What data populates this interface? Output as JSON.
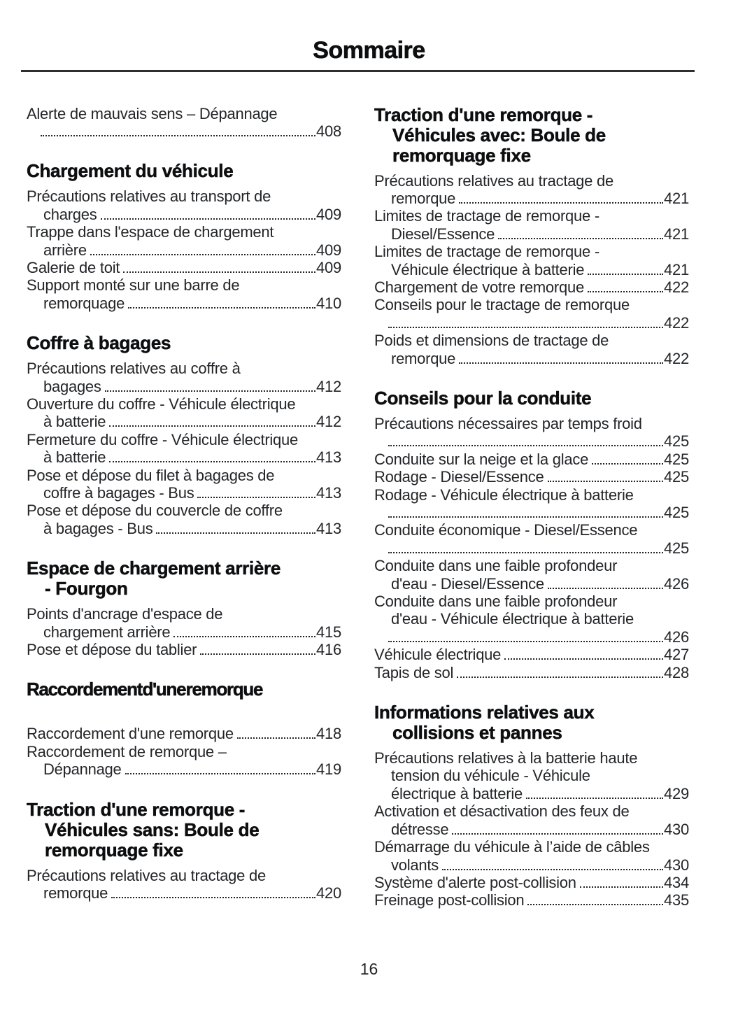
{
  "header": {
    "title": "Sommaire"
  },
  "footer": {
    "page_number": "16"
  },
  "colors": {
    "text": "#232528",
    "heading": "#0d0e10",
    "rule": "#2f2f2f",
    "background": "#ffffff"
  },
  "toc": {
    "left_column": [
      {
        "heading": null,
        "entries": [
          {
            "lines": [
              "Alerte de mauvais sens – Dépannage",
              ""
            ],
            "page": "408"
          }
        ]
      },
      {
        "heading": [
          "Chargement du véhicule"
        ],
        "entries": [
          {
            "lines": [
              "Précautions relatives au transport de",
              "charges"
            ],
            "page": "409"
          },
          {
            "lines": [
              "Trappe dans l'espace de chargement",
              "arrière"
            ],
            "page": "409"
          },
          {
            "lines": [
              "Galerie de toit"
            ],
            "page": "409"
          },
          {
            "lines": [
              "Support monté sur une barre de",
              "remorquage"
            ],
            "page": "410"
          }
        ]
      },
      {
        "heading": [
          "Coffre à bagages"
        ],
        "entries": [
          {
            "lines": [
              "Précautions relatives au coffre à",
              "bagages"
            ],
            "page": "412"
          },
          {
            "lines": [
              "Ouverture du coffre - Véhicule électrique",
              "à batterie"
            ],
            "page": "412"
          },
          {
            "lines": [
              "Fermeture du coffre - Véhicule électrique",
              "à batterie"
            ],
            "page": "413"
          },
          {
            "lines": [
              "Pose et dépose du filet à bagages de",
              "coffre à bagages - Bus"
            ],
            "page": "413"
          },
          {
            "lines": [
              "Pose et dépose du couvercle de coffre",
              "à bagages - Bus"
            ],
            "page": "413"
          }
        ]
      },
      {
        "heading": [
          "Espace de chargement arrière",
          "- Fourgon"
        ],
        "entries": [
          {
            "lines": [
              "Points d'ancrage d'espace de",
              "chargement arrière"
            ],
            "page": "415"
          },
          {
            "lines": [
              "Pose et dépose du tablier"
            ],
            "page": "416"
          }
        ]
      },
      {
        "heading": [
          "Raccordement d'une remorque"
        ],
        "extra_gap_after_heading": true,
        "entries": [
          {
            "lines": [
              "Raccordement d'une remorque"
            ],
            "page": "418"
          },
          {
            "lines": [
              "Raccordement de remorque –",
              "Dépannage"
            ],
            "page": "419"
          }
        ]
      },
      {
        "heading": [
          "Traction d'une remorque -",
          "Véhicules sans: Boule de",
          "remorquage fixe"
        ],
        "entries": [
          {
            "lines": [
              "Précautions relatives au tractage de",
              "remorque"
            ],
            "page": "420"
          }
        ]
      }
    ],
    "right_column": [
      {
        "heading": [
          "Traction d'une remorque -",
          "Véhicules avec: Boule de",
          "remorquage fixe"
        ],
        "entries": [
          {
            "lines": [
              "Précautions relatives au tractage de",
              "remorque"
            ],
            "page": "421"
          },
          {
            "lines": [
              "Limites de tractage de remorque -",
              "Diesel/Essence"
            ],
            "page": "421"
          },
          {
            "lines": [
              "Limites de tractage de remorque -",
              "Véhicule électrique à batterie"
            ],
            "page": "421"
          },
          {
            "lines": [
              "Chargement de votre remorque"
            ],
            "page": "422"
          },
          {
            "lines": [
              "Conseils pour le tractage de remorque",
              ""
            ],
            "page": "422"
          },
          {
            "lines": [
              "Poids et dimensions de tractage de",
              "remorque"
            ],
            "page": "422"
          }
        ]
      },
      {
        "heading": [
          "Conseils pour la conduite"
        ],
        "entries": [
          {
            "lines": [
              "Précautions nécessaires par temps froid",
              ""
            ],
            "page": "425"
          },
          {
            "lines": [
              "Conduite sur la neige et la glace"
            ],
            "page": "425"
          },
          {
            "lines": [
              "Rodage - Diesel/Essence"
            ],
            "page": "425"
          },
          {
            "lines": [
              "Rodage - Véhicule électrique à batterie",
              ""
            ],
            "page": "425"
          },
          {
            "lines": [
              "Conduite économique - Diesel/Essence",
              ""
            ],
            "page": "425"
          },
          {
            "lines": [
              "Conduite dans une faible profondeur",
              "d'eau - Diesel/Essence"
            ],
            "page": "426"
          },
          {
            "lines": [
              "Conduite dans une faible profondeur",
              "d'eau - Véhicule électrique à batterie",
              ""
            ],
            "page": "426"
          },
          {
            "lines": [
              "Véhicule électrique"
            ],
            "page": "427"
          },
          {
            "lines": [
              "Tapis de sol"
            ],
            "page": "428"
          }
        ]
      },
      {
        "heading": [
          "Informations relatives aux",
          "collisions et pannes"
        ],
        "entries": [
          {
            "lines": [
              "Précautions relatives à la batterie haute",
              "tension du véhicule - Véhicule",
              "électrique à batterie"
            ],
            "page": "429"
          },
          {
            "lines": [
              "Activation et désactivation des feux de",
              "détresse"
            ],
            "page": "430"
          },
          {
            "lines": [
              "Démarrage du véhicule à l’aide de câbles",
              "volants"
            ],
            "page": "430"
          },
          {
            "lines": [
              "Système d'alerte post-collision"
            ],
            "page": "434"
          },
          {
            "lines": [
              "Freinage post-collision"
            ],
            "page": "435"
          }
        ]
      }
    ]
  }
}
